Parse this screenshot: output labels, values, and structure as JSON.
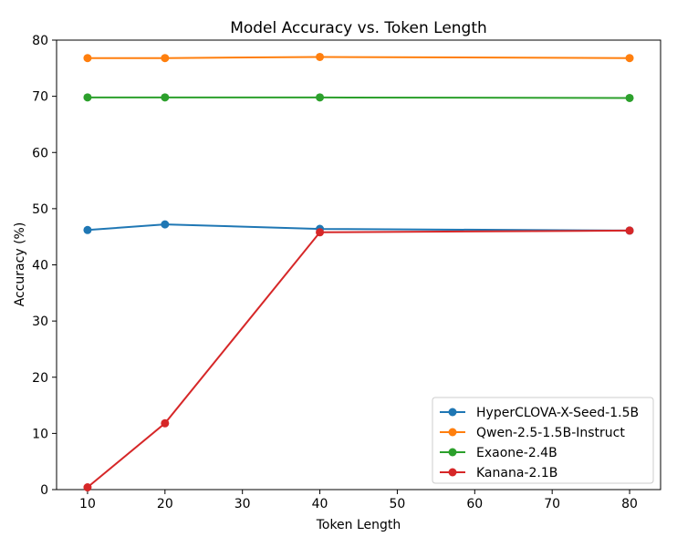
{
  "chart_data": {
    "type": "line",
    "title": "Model Accuracy vs. Token Length",
    "xlabel": "Token Length",
    "ylabel": "Accuracy (%)",
    "xlim": [
      6,
      84
    ],
    "ylim": [
      0,
      80
    ],
    "xticks": [
      10,
      20,
      30,
      40,
      50,
      60,
      70,
      80
    ],
    "yticks": [
      0,
      10,
      20,
      30,
      40,
      50,
      60,
      70,
      80
    ],
    "x": [
      10,
      20,
      40,
      80
    ],
    "legend_position": "lower-right",
    "series": [
      {
        "name": "HyperCLOVA-X-Seed-1.5B",
        "color": "#1f77b4",
        "values": [
          46.2,
          47.2,
          46.4,
          46.1
        ]
      },
      {
        "name": "Qwen-2.5-1.5B-Instruct",
        "color": "#ff7f0e",
        "values": [
          76.8,
          76.8,
          77.0,
          76.8
        ]
      },
      {
        "name": "Exaone-2.4B",
        "color": "#2ca02c",
        "values": [
          69.8,
          69.8,
          69.8,
          69.7
        ]
      },
      {
        "name": "Kanana-2.1B",
        "color": "#d62728",
        "values": [
          0.4,
          11.8,
          45.8,
          46.1
        ]
      }
    ]
  }
}
